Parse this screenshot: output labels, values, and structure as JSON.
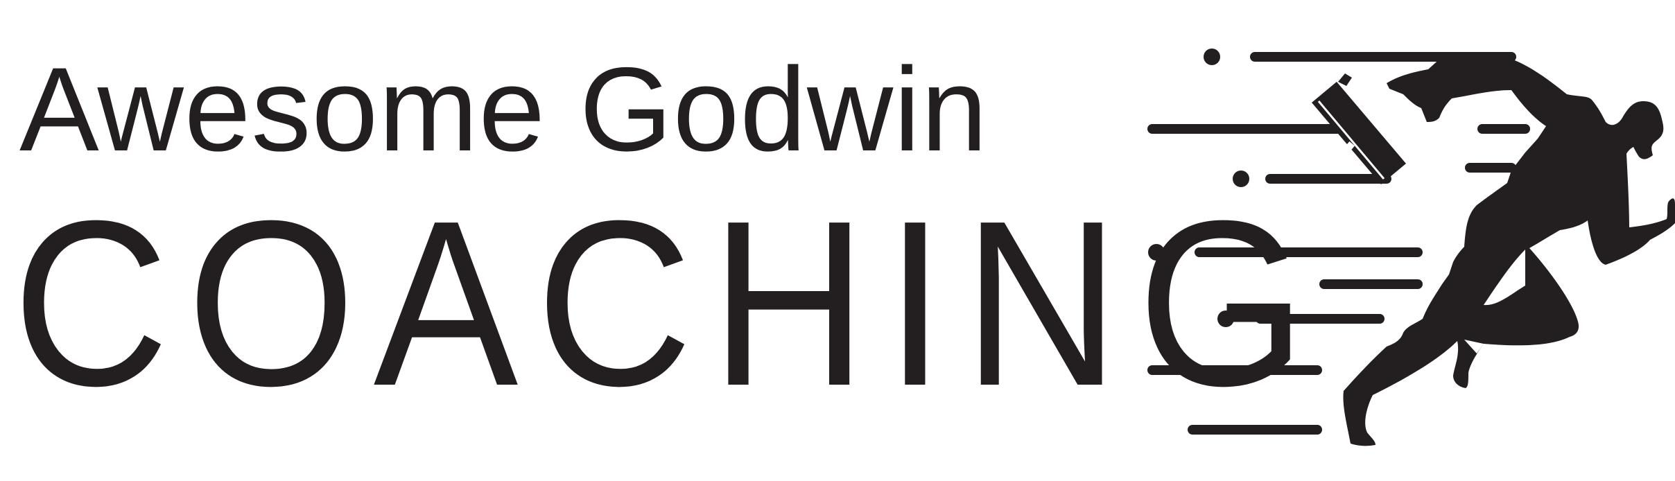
{
  "logo": {
    "brand_name": "Awesome Godwin",
    "brand_word": "COACHING",
    "icon": "running-businessman-icon",
    "colors": {
      "ink": "#231f20",
      "background": "#ffffff"
    }
  }
}
